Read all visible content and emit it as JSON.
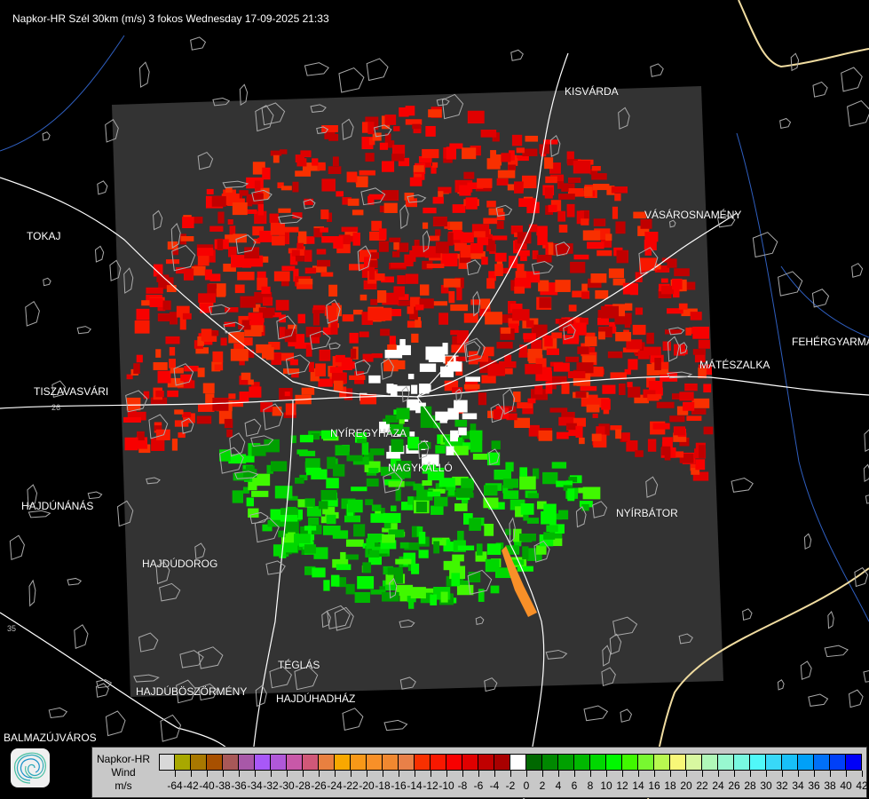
{
  "title": "Napkor-HR Szél 30km (m/s) 3 fokos Wednesday 17-09-2025 21:33",
  "cities": [
    {
      "name": "KISVÁRDA"
    },
    {
      "name": "TOKAJ"
    },
    {
      "name": "VÁSÁROSNAMÉNY"
    },
    {
      "name": "FEHÉRGYARMAT"
    },
    {
      "name": "MÁTÉSZALKA"
    },
    {
      "name": "TISZAVASVÁRI"
    },
    {
      "name": "NYÍREGYHÁZA"
    },
    {
      "name": "NAGYKÁLLÓ"
    },
    {
      "name": "HAJDÚNÁNÁS"
    },
    {
      "name": "NYÍRBÁTOR"
    },
    {
      "name": "HAJDÚDOROG"
    },
    {
      "name": "TÉGLÁS"
    },
    {
      "name": "HAJDÚBÖSZÖRMÉNY"
    },
    {
      "name": "HAJDÚHADHÁZ"
    },
    {
      "name": "BALMAZÚJVÁROS"
    }
  ],
  "roads": [
    "26",
    "35"
  ],
  "logo_icon": "napkor-swirl-logo",
  "legend": {
    "line1": "Napkor-HR",
    "line2": "Wind",
    "line3": "m/s",
    "colors": [
      "#d8d8d8",
      "#a8a800",
      "#a87800",
      "#a85000",
      "#a85858",
      "#a858a8",
      "#a858f8",
      "#b058d8",
      "#c858a8",
      "#d05878",
      "#e88040",
      "#f8a800",
      "#f89818",
      "#f89028",
      "#f08830",
      "#e88048",
      "#f83000",
      "#f81800",
      "#f80000",
      "#e00000",
      "#c00000",
      "#a80000",
      "#ffffff",
      "#006800",
      "#008800",
      "#00a000",
      "#00b800",
      "#00d800",
      "#00f800",
      "#40f800",
      "#78f830",
      "#b8f850",
      "#f8f878",
      "#d8f8a0",
      "#b0f8b8",
      "#98f8d0",
      "#78f8e0",
      "#50f8f8",
      "#38d8f8",
      "#18c0f8",
      "#00a0f8",
      "#0070f8",
      "#0040f8",
      "#0000f8"
    ],
    "labels": [
      "-64",
      "-42",
      "-40",
      "-38",
      "-36",
      "-34",
      "-32",
      "-30",
      "-28",
      "-26",
      "-24",
      "-22",
      "-20",
      "-18",
      "-16",
      "-14",
      "-12",
      "-10",
      "-8",
      "-6",
      "-4",
      "-2",
      "0",
      "2",
      "4",
      "6",
      "8",
      "10",
      "12",
      "14",
      "16",
      "18",
      "20",
      "22",
      "24",
      "26",
      "28",
      "30",
      "32",
      "34",
      "36",
      "38",
      "40",
      "42"
    ]
  },
  "colors": {
    "radar_area": "#333333",
    "background": "#000000",
    "border_lines": "#aaaaaa",
    "roads": "#ffffff",
    "rivers": "#3060c0",
    "country_border": "#f0dca0"
  }
}
